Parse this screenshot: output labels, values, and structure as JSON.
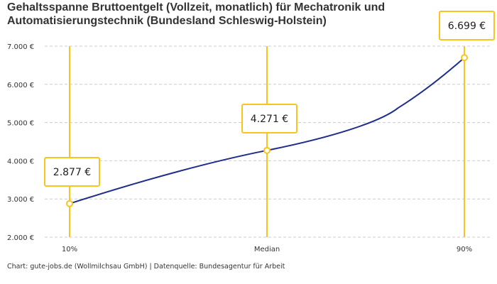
{
  "title": "Gehaltsspanne Bruttoentgelt (Vollzeit, monatlich) für Mechatronik und Automatisierungstechnik (Bundesland Schleswig-Holstein)",
  "footer": "Chart: gute-jobs.de (Wollmilchsau GmbH) | Datenquelle: Bundesagentur für Arbeit",
  "colors": {
    "line": "#1f2d8c",
    "marker": "#f8c51c",
    "grid": "#cccccc"
  },
  "chart_data": {
    "type": "line",
    "categories": [
      "10%",
      "Median",
      "90%"
    ],
    "values": [
      2877,
      4271,
      6699
    ],
    "data_labels": [
      "2.877 €",
      "4.271 €",
      "6.699 €"
    ],
    "ylim": [
      2000,
      7000
    ],
    "yticks": [
      2000,
      3000,
      4000,
      5000,
      6000,
      7000
    ],
    "ytick_labels": [
      "2.000 €",
      "3.000 €",
      "4.000 €",
      "5.000 €",
      "6.000 €",
      "7.000 €"
    ],
    "grid": true,
    "title": "Gehaltsspanne Bruttoentgelt (Vollzeit, monatlich) für Mechatronik und Automatisierungstechnik (Bundesland Schleswig-Holstein)"
  }
}
